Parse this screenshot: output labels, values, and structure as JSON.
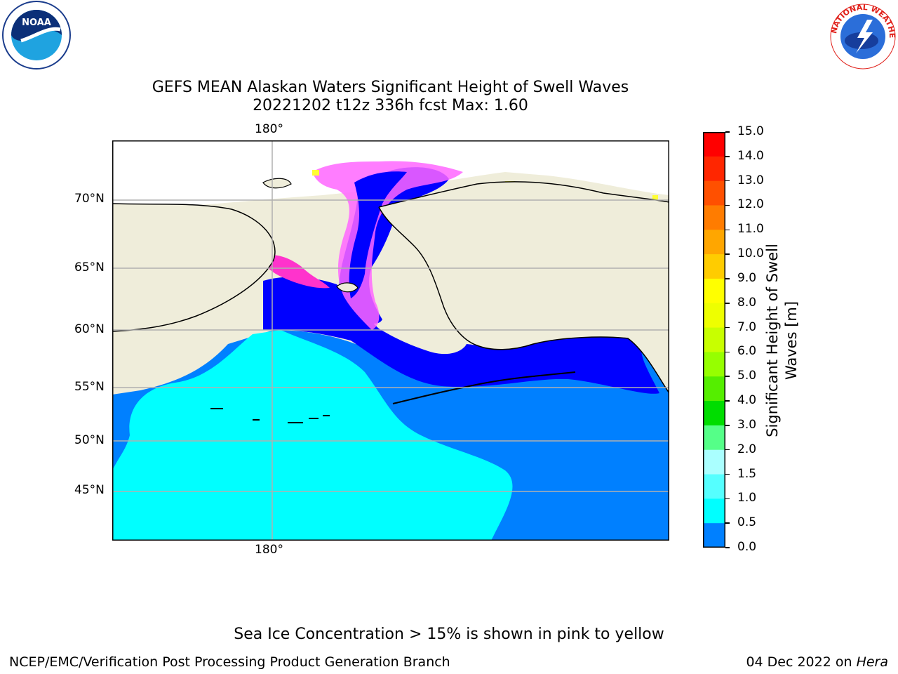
{
  "title_line1": "GEFS MEAN Alaskan Waters Significant Height of Swell Waves",
  "title_line2": "20221202 t12z 336h fcst   Max: 1.60",
  "map": {
    "lon_top_label": "180°",
    "lon_bottom_label": "180°",
    "lat_labels": [
      "70°N",
      "65°N",
      "60°N",
      "55°N",
      "50°N",
      "45°N"
    ],
    "colors": {
      "land": "#efedda",
      "ocean_0_5": "#0000ff",
      "ocean_0_5_1": "#0080ff",
      "ocean_1_1_5": "#00ffff",
      "ice_pink": "#ff66ff",
      "ice_magenta": "#ff33cc",
      "ice_yellow": "#ffff33",
      "grid": "#b0b0b0",
      "coast": "#000000"
    }
  },
  "colorbar": {
    "label_line1": "Significant Height of Swell",
    "label_line2": "Waves [m]",
    "ticks": [
      "15.0",
      "14.0",
      "13.0",
      "12.0",
      "11.0",
      "10.0",
      "9.0",
      "8.0",
      "7.0",
      "6.0",
      "5.0",
      "4.0",
      "3.0",
      "2.0",
      "1.5",
      "1.0",
      "0.5",
      "0.0"
    ],
    "colors": [
      "#ff0000",
      "#ff2600",
      "#ff5000",
      "#ff7c00",
      "#ffa600",
      "#ffcc00",
      "#ffff00",
      "#eeff00",
      "#c8ff00",
      "#96ff00",
      "#55ee00",
      "#00dd00",
      "#55ff88",
      "#aaffff",
      "#55ffff",
      "#00ffff",
      "#0080ff",
      "#0000ff"
    ]
  },
  "logos": {
    "noaa_text": "NOAA",
    "nws_ring_text": "NATIONAL WEATHER SERVICE"
  },
  "footer": {
    "sea_ice_note": "Sea Ice Concentration > 15% is shown in pink to yellow",
    "branch": "NCEP/EMC/Verification Post Processing Product Generation Branch",
    "date": "04 Dec 2022 on ",
    "system": "Hera"
  }
}
